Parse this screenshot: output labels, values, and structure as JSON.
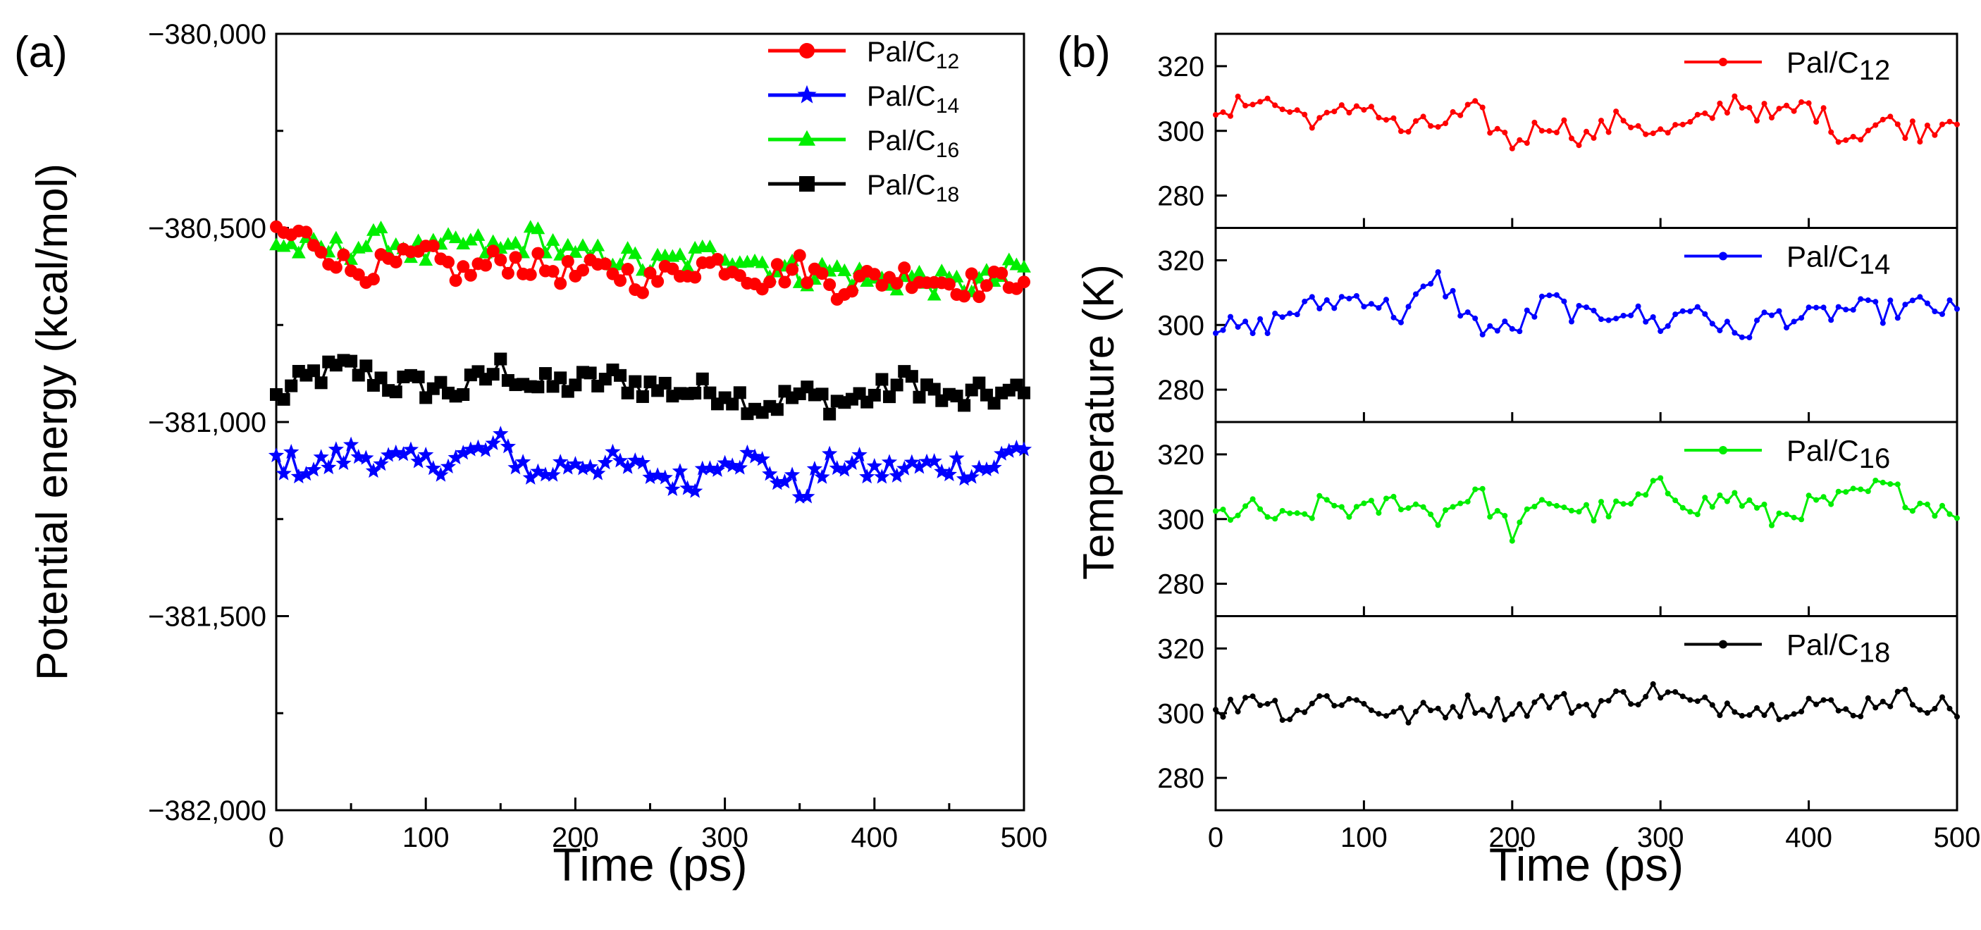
{
  "panel_labels": [
    "(a)",
    "(b)"
  ],
  "colors": {
    "Pal/C12": "#ff0000",
    "Pal/C14": "#0000ff",
    "Pal/C16": "#00ee00",
    "Pal/C18": "#000000"
  },
  "chart_data": [
    {
      "panel": "(a)",
      "type": "line",
      "xlabel": "Time (ps)",
      "ylabel": "Potential energy (kcal/mol)",
      "xlim": [
        0,
        500
      ],
      "ylim": [
        -382000,
        -380000
      ],
      "xticks": [
        0,
        100,
        200,
        300,
        400,
        500
      ],
      "xtick_labels": [
        "0",
        "100",
        "200",
        "300",
        "400",
        "500"
      ],
      "yticks": [
        -380000,
        -380500,
        -381000,
        -381500,
        -382000
      ],
      "ytick_labels": [
        "−380,000",
        "−380,500",
        "−381,000",
        "−381,500",
        "−382,000"
      ],
      "legend_position": "top-right",
      "x": [
        0,
        25,
        50,
        75,
        100,
        125,
        150,
        175,
        200,
        225,
        250,
        275,
        300,
        325,
        350,
        375,
        400,
        425,
        450,
        475,
        500
      ],
      "series": [
        {
          "name": "Pal/C12",
          "sub": "12",
          "marker": "circle",
          "values": [
            -380510,
            -380530,
            -380610,
            -380600,
            -380570,
            -380620,
            -380580,
            -380600,
            -380620,
            -380610,
            -380640,
            -380600,
            -380590,
            -380630,
            -380600,
            -380650,
            -380630,
            -380620,
            -380640,
            -380650,
            -380620
          ]
        },
        {
          "name": "Pal/C14",
          "sub": "14",
          "marker": "star",
          "values": [
            -381100,
            -381120,
            -381080,
            -381100,
            -381110,
            -381090,
            -381060,
            -381140,
            -381100,
            -381110,
            -381130,
            -381160,
            -381080,
            -381110,
            -381180,
            -381100,
            -381130,
            -381120,
            -381110,
            -381120,
            -381060
          ]
        },
        {
          "name": "Pal/C16",
          "sub": "16",
          "marker": "triangle",
          "values": [
            -380540,
            -380560,
            -380550,
            -380530,
            -380570,
            -380540,
            -380560,
            -380520,
            -380580,
            -380570,
            -380600,
            -380580,
            -380560,
            -380590,
            -380620,
            -380610,
            -380640,
            -380630,
            -380650,
            -380640,
            -380600
          ]
        },
        {
          "name": "Pal/C18",
          "sub": "18",
          "marker": "square",
          "values": [
            -380940,
            -380880,
            -380860,
            -380900,
            -380910,
            -380920,
            -380860,
            -380910,
            -380900,
            -380890,
            -380910,
            -380920,
            -380920,
            -380960,
            -380930,
            -380950,
            -380930,
            -380890,
            -380950,
            -380930,
            -380930
          ]
        }
      ]
    },
    {
      "panel": "(b)",
      "type": "line",
      "xlabel": "Time (ps)",
      "ylabel": "Temperature (K)",
      "xlim": [
        0,
        500
      ],
      "xticks": [
        0,
        100,
        200,
        300,
        400,
        500
      ],
      "xtick_labels": [
        "0",
        "100",
        "200",
        "300",
        "400",
        "500"
      ],
      "subplots": [
        {
          "name": "Pal/C12",
          "sub": "12",
          "ylim": [
            270,
            330
          ],
          "yticks": [
            280,
            300,
            320
          ],
          "x": [
            0,
            25,
            50,
            75,
            100,
            125,
            150,
            175,
            200,
            225,
            250,
            275,
            300,
            325,
            350,
            375,
            400,
            425,
            450,
            475,
            500
          ],
          "values": [
            302,
            311,
            306,
            303,
            309,
            300,
            302,
            306,
            296,
            303,
            298,
            304,
            299,
            302,
            310,
            304,
            308,
            298,
            303,
            300,
            305
          ]
        },
        {
          "name": "Pal/C14",
          "sub": "14",
          "ylim": [
            270,
            330
          ],
          "yticks": [
            280,
            300,
            320
          ],
          "x": [
            0,
            25,
            50,
            75,
            100,
            125,
            150,
            175,
            200,
            225,
            250,
            275,
            300,
            325,
            350,
            375,
            400,
            425,
            450,
            475,
            500
          ],
          "values": [
            300,
            298,
            304,
            307,
            309,
            303,
            314,
            300,
            298,
            308,
            302,
            305,
            300,
            306,
            296,
            303,
            302,
            305,
            304,
            306,
            304
          ]
        },
        {
          "name": "Pal/C16",
          "sub": "16",
          "ylim": [
            270,
            330
          ],
          "yticks": [
            280,
            300,
            320
          ],
          "x": [
            0,
            25,
            50,
            75,
            100,
            125,
            150,
            175,
            200,
            225,
            250,
            275,
            300,
            325,
            350,
            375,
            400,
            425,
            450,
            475,
            500
          ],
          "values": [
            301,
            303,
            299,
            305,
            302,
            306,
            301,
            309,
            296,
            306,
            302,
            303,
            310,
            304,
            307,
            300,
            304,
            306,
            310,
            305,
            303
          ]
        },
        {
          "name": "Pal/C18",
          "sub": "18",
          "ylim": [
            270,
            330
          ],
          "yticks": [
            280,
            300,
            320
          ],
          "x": [
            0,
            25,
            50,
            75,
            100,
            125,
            150,
            175,
            200,
            225,
            250,
            275,
            300,
            325,
            350,
            375,
            400,
            425,
            450,
            475,
            500
          ],
          "values": [
            299,
            306,
            300,
            305,
            303,
            299,
            301,
            303,
            301,
            304,
            302,
            305,
            307,
            302,
            303,
            301,
            304,
            300,
            305,
            304,
            301
          ]
        }
      ]
    }
  ]
}
